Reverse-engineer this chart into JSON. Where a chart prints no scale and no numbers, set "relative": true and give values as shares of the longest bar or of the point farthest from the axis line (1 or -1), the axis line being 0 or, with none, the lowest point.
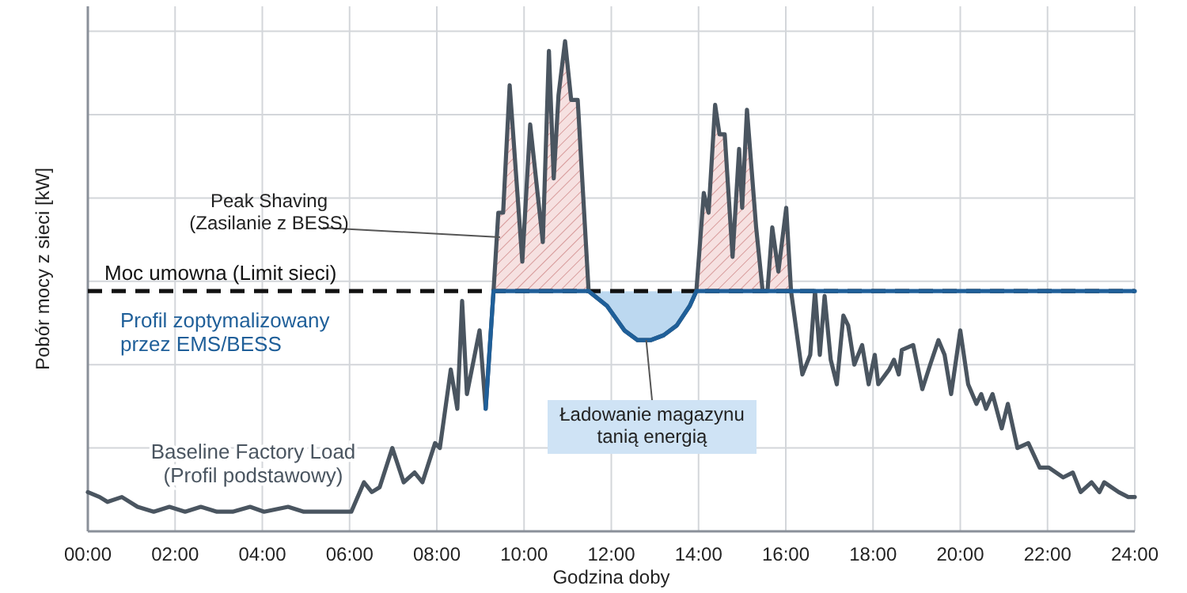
{
  "chart_data": {
    "type": "line",
    "relative": true,
    "xlabel": "Godzina doby",
    "ylabel": "Pobór mocy z sieci [kW]",
    "xlim": [
      0,
      24
    ],
    "xticks": [
      {
        "value": 0,
        "label": "00:00"
      },
      {
        "value": 2,
        "label": "02:00"
      },
      {
        "value": 4,
        "label": "04:00"
      },
      {
        "value": 6,
        "label": "06:00"
      },
      {
        "value": 8,
        "label": "08:00"
      },
      {
        "value": 10,
        "label": "10:00"
      },
      {
        "value": 12,
        "label": "12:00"
      },
      {
        "value": 14,
        "label": "14:00"
      },
      {
        "value": 16,
        "label": "16:00"
      },
      {
        "value": 18,
        "label": "18:00"
      },
      {
        "value": 20,
        "label": "20:00"
      },
      {
        "value": 22,
        "label": "22:00"
      },
      {
        "value": 24,
        "label": "24:00"
      }
    ],
    "grid": true,
    "legend": false,
    "line_style": "solid",
    "series": [
      {
        "name": "Baseline Factory Load\n(Profil podstawowy)",
        "color": "#4a5560",
        "x": [
          0,
          0.27,
          0.45,
          0.78,
          1.14,
          1.51,
          1.87,
          2.23,
          2.59,
          2.96,
          3.32,
          3.72,
          4.04,
          4.59,
          4.95,
          5.5,
          6.04,
          6.33,
          6.51,
          6.69,
          6.98,
          7.24,
          7.49,
          7.67,
          7.96,
          8.07,
          8.32,
          8.47,
          8.58,
          8.69,
          8.98,
          9.12,
          9.3,
          9.41,
          9.52,
          9.67,
          9.96,
          10.14,
          10.43,
          10.57,
          10.68,
          10.79,
          10.94,
          11.08,
          11.23,
          11.48,
          11.9,
          12.3,
          12.6,
          12.9,
          13.2,
          13.5,
          13.8,
          13.95,
          14.12,
          14.23,
          14.38,
          14.48,
          14.6,
          14.78,
          14.93,
          15,
          15.11,
          15.32,
          15.47,
          15.58,
          15.69,
          15.83,
          16.01,
          16.12,
          16.38,
          16.56,
          16.67,
          16.78,
          16.89,
          17.03,
          17.17,
          17.32,
          17.43,
          17.57,
          17.75,
          17.9,
          18.04,
          18.12,
          18.37,
          18.48,
          18.59,
          18.66,
          18.92,
          19.13,
          19.31,
          19.5,
          19.64,
          19.79,
          20,
          20.18,
          20.37,
          20.48,
          20.59,
          20.74,
          20.95,
          21.09,
          21.31,
          21.56,
          21.82,
          22.03,
          22.36,
          22.58,
          22.76,
          23.01,
          23.19,
          23.3,
          23.63,
          23.85,
          24
        ],
        "values": [
          0.08,
          0.07,
          0.06,
          0.07,
          0.05,
          0.04,
          0.05,
          0.04,
          0.05,
          0.04,
          0.04,
          0.05,
          0.04,
          0.05,
          0.04,
          0.04,
          0.04,
          0.1,
          0.08,
          0.09,
          0.17,
          0.1,
          0.12,
          0.1,
          0.18,
          0.17,
          0.33,
          0.25,
          0.47,
          0.28,
          0.41,
          0.25,
          0.49,
          0.65,
          0.65,
          0.91,
          0.55,
          0.83,
          0.59,
          0.98,
          0.72,
          0.89,
          1,
          0.88,
          0.88,
          0.49,
          0.46,
          0.41,
          0.39,
          0.39,
          0.4,
          0.42,
          0.46,
          0.49,
          0.69,
          0.65,
          0.87,
          0.81,
          0.81,
          0.56,
          0.78,
          0.66,
          0.86,
          0.62,
          0.49,
          0.49,
          0.62,
          0.53,
          0.66,
          0.49,
          0.32,
          0.36,
          0.49,
          0.36,
          0.48,
          0.35,
          0.3,
          0.44,
          0.42,
          0.34,
          0.38,
          0.3,
          0.36,
          0.3,
          0.33,
          0.35,
          0.32,
          0.37,
          0.38,
          0.29,
          0.34,
          0.39,
          0.36,
          0.28,
          0.41,
          0.3,
          0.26,
          0.28,
          0.25,
          0.28,
          0.21,
          0.26,
          0.17,
          0.18,
          0.13,
          0.13,
          0.11,
          0.12,
          0.08,
          0.1,
          0.08,
          0.1,
          0.08,
          0.07,
          0.07
        ]
      },
      {
        "name": "Profil zoptymalizowany\nprzez EMS/BESS",
        "color": "#1f5f99",
        "x": [
          9.12,
          9.3,
          11.48,
          11.9,
          12.3,
          12.6,
          12.9,
          13.2,
          13.5,
          13.8,
          13.95,
          24
        ],
        "values": [
          0.25,
          0.49,
          0.49,
          0.46,
          0.41,
          0.39,
          0.39,
          0.4,
          0.42,
          0.46,
          0.49,
          0.49
        ]
      }
    ],
    "ref_lines": [
      {
        "axis": "y",
        "value": 0.49,
        "label": "Moc umowna (Limit sieci)",
        "color": "#111111",
        "line_style": "dashed"
      }
    ],
    "annotations": [
      {
        "text": "Peak Shaving\n(Zasilanie z BESS)",
        "x": 9.45,
        "y": 0.6
      },
      {
        "text": "Ładowanie magazynu\ntanią energią",
        "x": 12.8,
        "y": 0.39
      }
    ]
  }
}
